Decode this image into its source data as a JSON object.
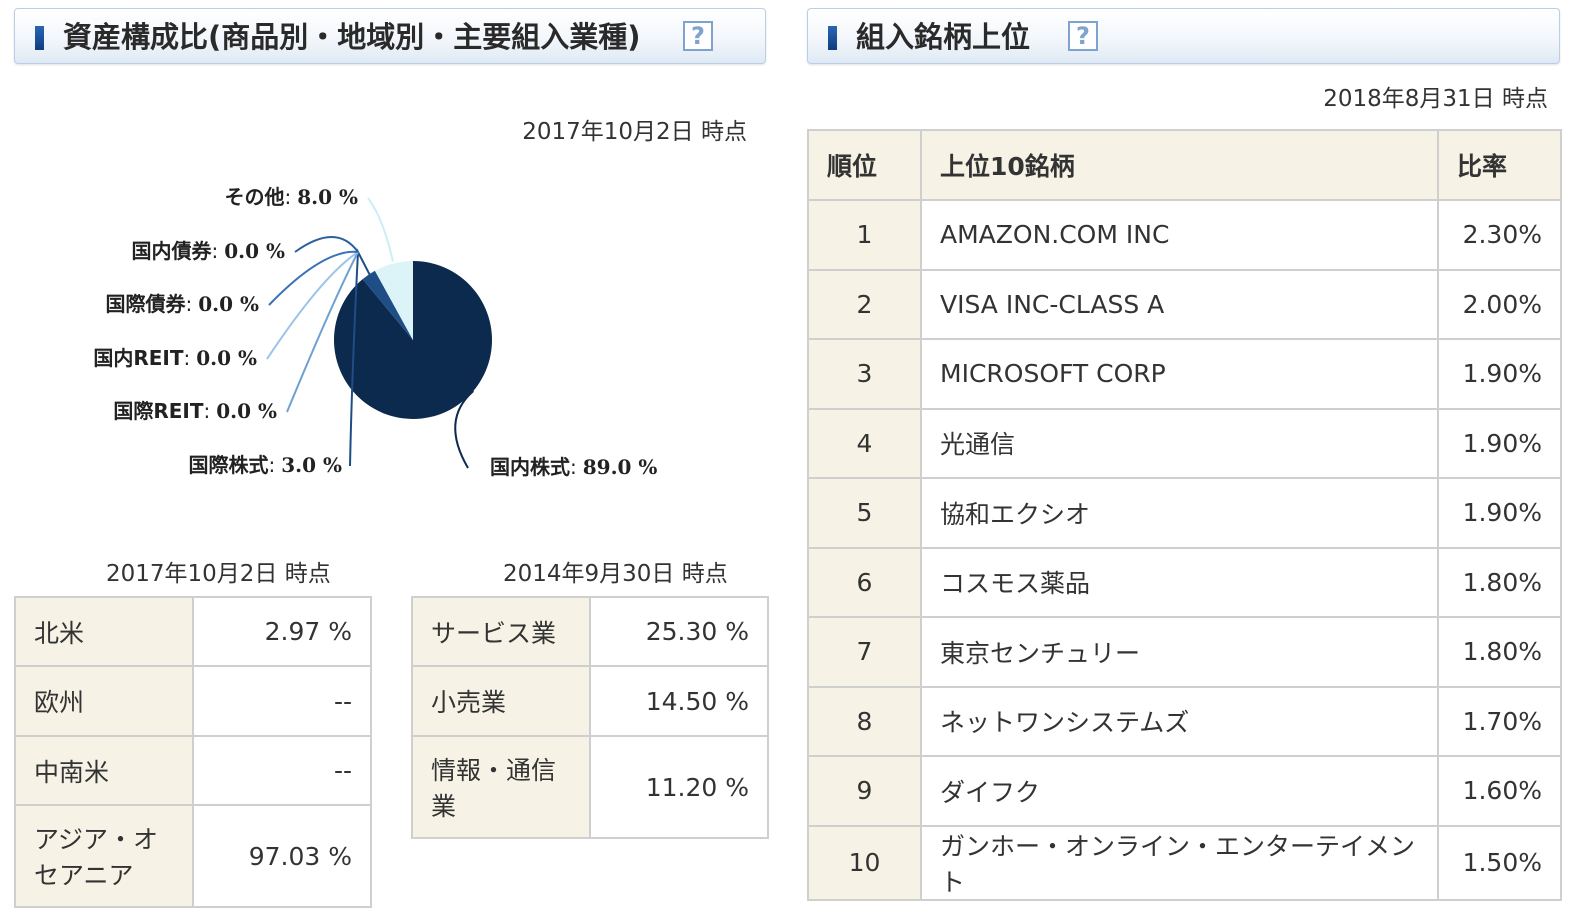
{
  "asset_panel": {
    "title": "資産構成比(商品別・地域別・主要組入業種)",
    "help_label": "?",
    "pie_asof": "2017年10月2日 時点",
    "region_asof": "2017年10月2日 時点",
    "industry_asof": "2014年9月30日 時点",
    "region_table": [
      {
        "label": "北米",
        "value": "2.97 %"
      },
      {
        "label": "欧州",
        "value": "--"
      },
      {
        "label": "中南米",
        "value": "--"
      },
      {
        "label": "アジア・オセアニア",
        "value": "97.03 %"
      }
    ],
    "industry_table": [
      {
        "label": "サービス業",
        "value": "25.30 %"
      },
      {
        "label": "小売業",
        "value": "14.50 %"
      },
      {
        "label": "情報・通信業",
        "value": "11.20 %"
      }
    ]
  },
  "chart_data": {
    "type": "pie",
    "unit_separator": ":",
    "slices": [
      {
        "label": "国内株式",
        "value": 89.0,
        "value_text": "89.0 %",
        "color": "#0b2a4e"
      },
      {
        "label": "国際株式",
        "value": 3.0,
        "value_text": "3.0 %",
        "color": "#1f4e86"
      },
      {
        "label": "国際REIT",
        "value": 0.0,
        "value_text": "0.0 %",
        "color": "#6fa0d4"
      },
      {
        "label": "国内REIT",
        "value": 0.0,
        "value_text": "0.0 %",
        "color": "#9cc4e8"
      },
      {
        "label": "国際債券",
        "value": 0.0,
        "value_text": "0.0 %",
        "color": "#3a72b8"
      },
      {
        "label": "国内債券",
        "value": 0.0,
        "value_text": "0.0 %",
        "color": "#2c5f9e"
      },
      {
        "label": "その他",
        "value": 8.0,
        "value_text": "8.0 %",
        "color": "#dcf3f8"
      }
    ]
  },
  "holdings_panel": {
    "title": "組入銘柄上位",
    "help_label": "?",
    "asof": "2018年8月31日 時点",
    "headers": {
      "rank": "順位",
      "name": "上位10銘柄",
      "ratio": "比率"
    },
    "rows": [
      {
        "rank": "1",
        "name": "AMAZON.COM INC",
        "ratio": "2.30%"
      },
      {
        "rank": "2",
        "name": "VISA INC-CLASS A",
        "ratio": "2.00%"
      },
      {
        "rank": "3",
        "name": "MICROSOFT CORP",
        "ratio": "1.90%"
      },
      {
        "rank": "4",
        "name": "光通信",
        "ratio": "1.90%"
      },
      {
        "rank": "5",
        "name": "協和エクシオ",
        "ratio": "1.90%"
      },
      {
        "rank": "6",
        "name": "コスモス薬品",
        "ratio": "1.80%"
      },
      {
        "rank": "7",
        "name": "東京センチュリー",
        "ratio": "1.80%"
      },
      {
        "rank": "8",
        "name": "ネットワンシステムズ",
        "ratio": "1.70%"
      },
      {
        "rank": "9",
        "name": "ダイフク",
        "ratio": "1.60%"
      },
      {
        "rank": "10",
        "name": "ガンホー・オンライン・エンターテイメント",
        "ratio": "1.50%"
      }
    ]
  }
}
